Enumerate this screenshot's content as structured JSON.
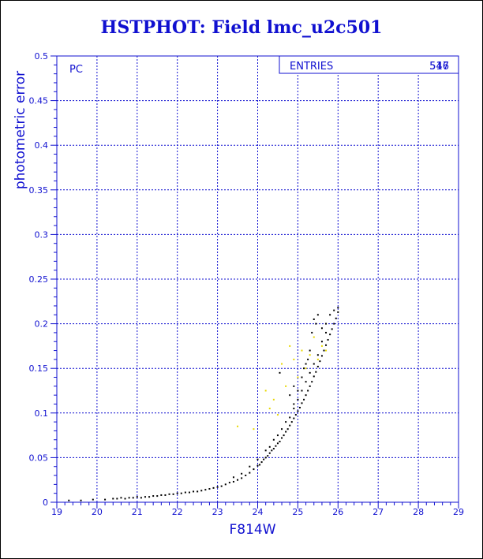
{
  "chart_data": {
    "type": "scatter",
    "title": "HSTPHOT: Field lmc_u2c501",
    "xlabel": "F814W",
    "ylabel": "photometric error",
    "xlim": [
      19,
      29
    ],
    "ylim": [
      0,
      0.5
    ],
    "x_ticks": [
      "19",
      "20",
      "21",
      "22",
      "23",
      "24",
      "25",
      "26",
      "27",
      "28",
      "29"
    ],
    "y_ticks": [
      "0",
      "0.05",
      "0.1",
      "0.15",
      "0.2",
      "0.25",
      "0.3",
      "0.35",
      "0.4",
      "0.45",
      "0.5"
    ],
    "grid": true,
    "annotation": "PC",
    "stats_box": {
      "label": "ENTRIES",
      "values": [
        "517",
        "546"
      ]
    },
    "series": [
      {
        "color": "#000000",
        "points": [
          [
            19.3,
            0.002
          ],
          [
            19.6,
            0.002
          ],
          [
            19.9,
            0.003
          ],
          [
            20.2,
            0.003
          ],
          [
            20.5,
            0.004
          ],
          [
            20.7,
            0.004
          ],
          [
            20.9,
            0.005
          ],
          [
            21.1,
            0.005
          ],
          [
            21.3,
            0.006
          ],
          [
            21.5,
            0.007
          ],
          [
            21.7,
            0.008
          ],
          [
            21.9,
            0.009
          ],
          [
            22.1,
            0.01
          ],
          [
            22.3,
            0.011
          ],
          [
            22.5,
            0.012
          ],
          [
            22.7,
            0.014
          ],
          [
            22.9,
            0.016
          ],
          [
            23.0,
            0.017
          ],
          [
            23.1,
            0.018
          ],
          [
            23.2,
            0.02
          ],
          [
            23.3,
            0.022
          ],
          [
            23.4,
            0.023
          ],
          [
            23.5,
            0.025
          ],
          [
            23.6,
            0.027
          ],
          [
            23.7,
            0.03
          ],
          [
            23.8,
            0.033
          ],
          [
            23.9,
            0.037
          ],
          [
            24.0,
            0.041
          ],
          [
            24.1,
            0.045
          ],
          [
            24.2,
            0.05
          ],
          [
            24.3,
            0.055
          ],
          [
            24.4,
            0.06
          ],
          [
            24.5,
            0.066
          ],
          [
            24.6,
            0.072
          ],
          [
            24.7,
            0.079
          ],
          [
            24.8,
            0.086
          ],
          [
            24.9,
            0.094
          ],
          [
            25.0,
            0.102
          ],
          [
            25.1,
            0.111
          ],
          [
            25.2,
            0.12
          ],
          [
            25.3,
            0.13
          ],
          [
            25.4,
            0.141
          ],
          [
            25.5,
            0.152
          ],
          [
            25.6,
            0.164
          ],
          [
            25.7,
            0.176
          ],
          [
            25.8,
            0.188
          ],
          [
            25.9,
            0.2
          ],
          [
            26.0,
            0.213
          ],
          [
            24.05,
            0.042
          ],
          [
            24.15,
            0.048
          ],
          [
            24.25,
            0.052
          ],
          [
            24.35,
            0.058
          ],
          [
            24.45,
            0.063
          ],
          [
            24.55,
            0.068
          ],
          [
            24.65,
            0.075
          ],
          [
            24.75,
            0.082
          ],
          [
            24.85,
            0.09
          ],
          [
            24.95,
            0.098
          ],
          [
            25.05,
            0.106
          ],
          [
            25.15,
            0.115
          ],
          [
            25.25,
            0.125
          ],
          [
            25.35,
            0.135
          ],
          [
            25.45,
            0.146
          ],
          [
            25.55,
            0.158
          ],
          [
            25.65,
            0.17
          ],
          [
            25.75,
            0.182
          ],
          [
            25.85,
            0.194
          ],
          [
            25.95,
            0.206
          ],
          [
            25.4,
            0.205
          ],
          [
            25.5,
            0.21
          ],
          [
            25.6,
            0.195
          ],
          [
            25.7,
            0.19
          ],
          [
            25.3,
            0.17
          ],
          [
            25.2,
            0.155
          ],
          [
            25.1,
            0.14
          ],
          [
            25.0,
            0.125
          ],
          [
            24.9,
            0.11
          ],
          [
            24.7,
            0.09
          ],
          [
            24.5,
            0.075
          ],
          [
            24.3,
            0.062
          ],
          [
            24.0,
            0.048
          ],
          [
            23.8,
            0.04
          ],
          [
            23.6,
            0.032
          ],
          [
            23.4,
            0.028
          ],
          [
            25.8,
            0.21
          ],
          [
            25.9,
            0.215
          ],
          [
            26.0,
            0.218
          ],
          [
            25.7,
            0.2
          ],
          [
            25.6,
            0.18
          ],
          [
            25.5,
            0.165
          ],
          [
            25.4,
            0.155
          ],
          [
            25.3,
            0.145
          ],
          [
            25.2,
            0.135
          ],
          [
            25.1,
            0.125
          ],
          [
            25.0,
            0.115
          ],
          [
            24.9,
            0.105
          ],
          [
            24.8,
            0.095
          ],
          [
            24.6,
            0.082
          ],
          [
            24.4,
            0.07
          ],
          [
            24.2,
            0.058
          ],
          [
            22.8,
            0.015
          ],
          [
            22.6,
            0.013
          ],
          [
            22.4,
            0.012
          ],
          [
            22.2,
            0.011
          ],
          [
            22.0,
            0.01
          ],
          [
            21.8,
            0.009
          ],
          [
            21.6,
            0.008
          ],
          [
            21.4,
            0.007
          ],
          [
            21.2,
            0.006
          ],
          [
            21.0,
            0.006
          ],
          [
            20.8,
            0.005
          ],
          [
            20.6,
            0.005
          ],
          [
            20.4,
            0.004
          ],
          [
            24.55,
            0.145
          ],
          [
            24.9,
            0.13
          ],
          [
            25.35,
            0.19
          ],
          [
            25.45,
            0.2
          ],
          [
            25.25,
            0.16
          ],
          [
            25.15,
            0.15
          ],
          [
            24.8,
            0.12
          ]
        ]
      },
      {
        "color": "#e8d800",
        "points": [
          [
            23.5,
            0.085
          ],
          [
            23.9,
            0.082
          ],
          [
            24.2,
            0.125
          ],
          [
            24.3,
            0.105
          ],
          [
            24.6,
            0.155
          ],
          [
            24.7,
            0.13
          ],
          [
            24.8,
            0.175
          ],
          [
            25.0,
            0.14
          ],
          [
            25.1,
            0.17
          ],
          [
            25.3,
            0.165
          ],
          [
            25.5,
            0.16
          ],
          [
            25.6,
            0.175
          ],
          [
            25.4,
            0.185
          ],
          [
            25.2,
            0.15
          ],
          [
            24.5,
            0.098
          ],
          [
            24.9,
            0.16
          ],
          [
            25.7,
            0.17
          ],
          [
            24.4,
            0.115
          ]
        ]
      }
    ]
  }
}
